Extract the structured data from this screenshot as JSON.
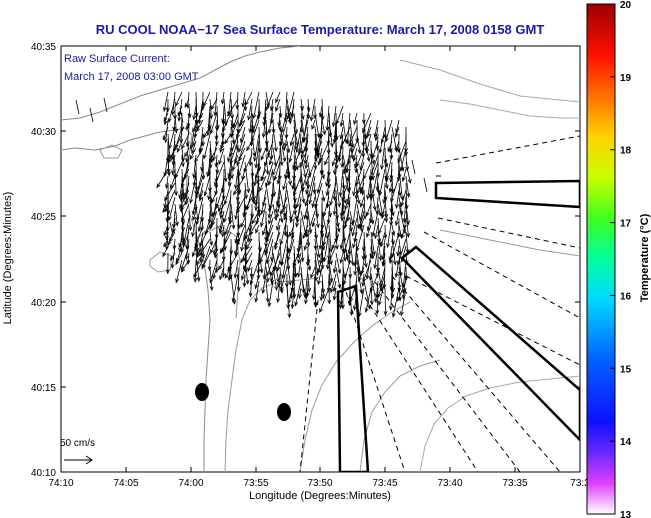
{
  "title": "RU COOL  NOAA−17  Sea Surface Temperature:  March 17, 2008 0158 GMT",
  "annotation": {
    "line1": "Raw Surface Current:",
    "line2": "March 17, 2008 03:00 GMT"
  },
  "scale": {
    "label": "50 cm/s"
  },
  "axes": {
    "xlabel": "Longitude (Degrees:Minutes)",
    "ylabel": "Latitude (Degrees:Minutes)",
    "xticks": [
      "74:10",
      "74:05",
      "74:00",
      "73:55",
      "73:50",
      "73:45",
      "73:40",
      "73:35",
      "73:3"
    ],
    "yticks": [
      "40:35",
      "40:30",
      "40:25",
      "40:20",
      "40:15",
      "40:10"
    ]
  },
  "colorbar": {
    "label": "Temperature (°C)",
    "ticks": [
      "20",
      "19",
      "18",
      "17",
      "16",
      "15",
      "14",
      "13"
    ],
    "min": 13,
    "max": 20
  }
}
